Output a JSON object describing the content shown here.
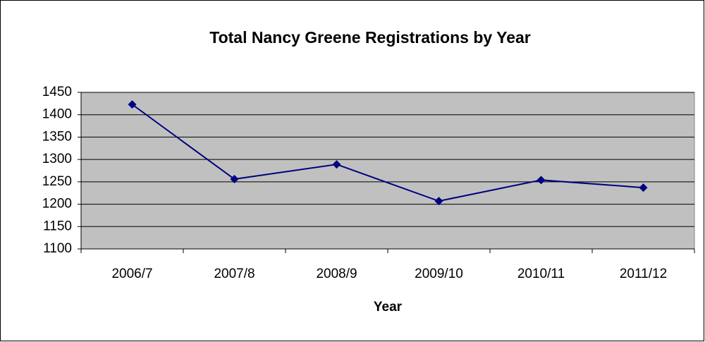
{
  "chart_data": {
    "type": "line",
    "title": "Total Nancy Greene Registrations by Year",
    "x_label": "Year",
    "categories": [
      "2006/7",
      "2007/8",
      "2008/9",
      "2009/10",
      "2010/11",
      "2011/12"
    ],
    "values": [
      1423,
      1256,
      1289,
      1207,
      1254,
      1237
    ],
    "color": "#000080",
    "ylim": [
      1100,
      1450
    ],
    "yticks": [
      1100,
      1150,
      1200,
      1250,
      1300,
      1350,
      1400,
      1450
    ],
    "grid": true
  }
}
